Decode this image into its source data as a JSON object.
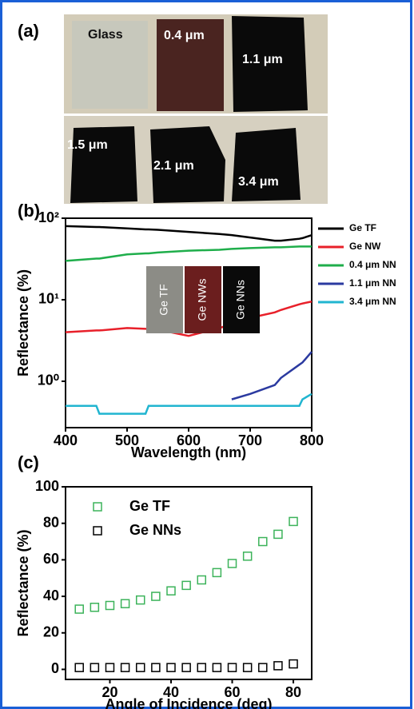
{
  "panel_labels": [
    "(a)",
    "(b)",
    "(c)"
  ],
  "photo_labels": [
    "Glass",
    "0.4 μm",
    "1.1 μm",
    "1.5 μm",
    "2.1 μm",
    "3.4 μm"
  ],
  "chart_data": [
    {
      "type": "line",
      "log_y": true,
      "legend": "outside right",
      "inset_labels": [
        "Ge TF",
        "Ge NWs",
        "Ge NNs"
      ],
      "x_label": "Wavelength (nm)",
      "y_label": "Reflectance (%)",
      "x": [
        400,
        450,
        455,
        500,
        530,
        535,
        550,
        600,
        650,
        670,
        700,
        740,
        750,
        780,
        785,
        800
      ],
      "xlim": [
        400,
        800
      ],
      "xticks": [
        400,
        500,
        600,
        700,
        800
      ],
      "ylim": [
        0.27,
        100
      ],
      "yticks": [
        {
          "value": 100,
          "label": "10²"
        },
        {
          "value": 10,
          "label": "10¹"
        },
        {
          "value": 1,
          "label": "10⁰"
        }
      ],
      "series": [
        {
          "name": "Ge TF",
          "color": "#000000",
          "values": [
            80,
            78,
            78,
            75,
            73,
            73,
            72,
            68,
            64,
            62,
            58,
            53,
            53,
            56,
            57,
            62
          ]
        },
        {
          "name": "Ge NW",
          "color": "#e8202a",
          "values": [
            4,
            4.2,
            4.2,
            4.5,
            4.4,
            4.4,
            4.3,
            3.6,
            4.5,
            5,
            6,
            7,
            7.5,
            8.8,
            9,
            9.5
          ]
        },
        {
          "name": "0.4 μm NN",
          "color": "#1fae4b",
          "values": [
            30,
            32,
            32,
            36,
            37,
            37,
            38,
            40,
            41,
            42,
            43,
            44,
            44,
            45,
            45,
            45
          ]
        },
        {
          "name": "1.1 μm NN",
          "color": "#2b3aa0",
          "values": [
            null,
            null,
            null,
            null,
            null,
            null,
            null,
            null,
            null,
            0.6,
            0.7,
            0.9,
            1.1,
            1.6,
            1.7,
            2.3
          ]
        },
        {
          "name": "3.4 μm NN",
          "color": "#21b5d0",
          "values": [
            0.5,
            0.5,
            0.4,
            0.4,
            0.4,
            0.5,
            0.5,
            0.5,
            0.5,
            0.5,
            0.5,
            0.5,
            0.5,
            0.5,
            0.6,
            0.7
          ]
        }
      ]
    },
    {
      "type": "scatter",
      "legend": "upper left",
      "x_label": "Angle of Incidence (deg)",
      "y_label": "Reflectance (%)",
      "x": [
        10,
        15,
        20,
        25,
        30,
        35,
        40,
        45,
        50,
        55,
        60,
        65,
        70,
        75,
        80
      ],
      "xlim": [
        5.5,
        86
      ],
      "xticks": [
        20,
        40,
        60,
        80
      ],
      "ylim": [
        -5.5,
        100
      ],
      "yticks": [
        0,
        20,
        40,
        60,
        80,
        100
      ],
      "series": [
        {
          "name": "Ge TF",
          "color": "#3cb35a",
          "values": [
            33,
            34,
            35,
            36,
            38,
            40,
            43,
            46,
            49,
            53,
            58,
            62,
            70,
            74,
            81
          ]
        },
        {
          "name": "Ge NNs",
          "color": "#000000",
          "values": [
            1,
            1,
            1,
            1,
            1,
            1,
            1,
            1,
            1,
            1,
            1,
            1,
            1,
            2,
            3
          ]
        }
      ]
    }
  ]
}
